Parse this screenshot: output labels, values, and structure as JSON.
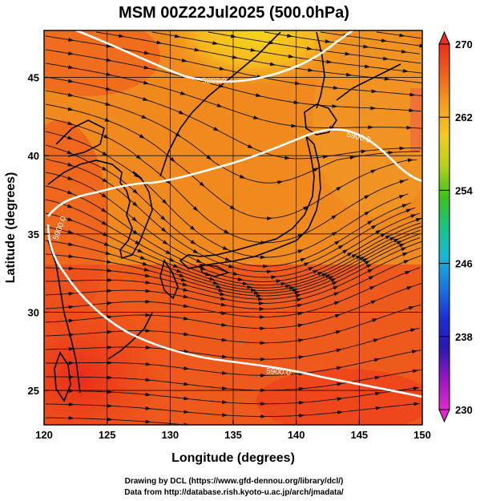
{
  "title": "MSM 00Z22Jul2025 (500.0hPa)",
  "xaxis": {
    "label": "Longitude (degrees)",
    "ticks": [
      "120",
      "125",
      "130",
      "135",
      "140",
      "145",
      "150"
    ]
  },
  "yaxis": {
    "label": "Latitude  (degrees)",
    "ticks": [
      "25",
      "30",
      "35",
      "40",
      "45"
    ]
  },
  "colorbar": {
    "ticks": [
      "270",
      "262",
      "254",
      "246",
      "238",
      "230"
    ]
  },
  "contour_labels": [
    "5880.0",
    "5900.0",
    "5900.0",
    "5900.0"
  ],
  "credits": {
    "line1": "Drawing by DCL (https://www.gfd-dennou.org/library/dcl/)",
    "line2": "Data from http://database.rish.kyoto-u.ac.jp/arch/jmadata/"
  },
  "colors": {
    "warm_fill": "#f08a1e",
    "hot_fill": "#ee3a1c",
    "cool_fill": "#f5c520",
    "contour": "#ffffff",
    "streamline": "#000000"
  }
}
